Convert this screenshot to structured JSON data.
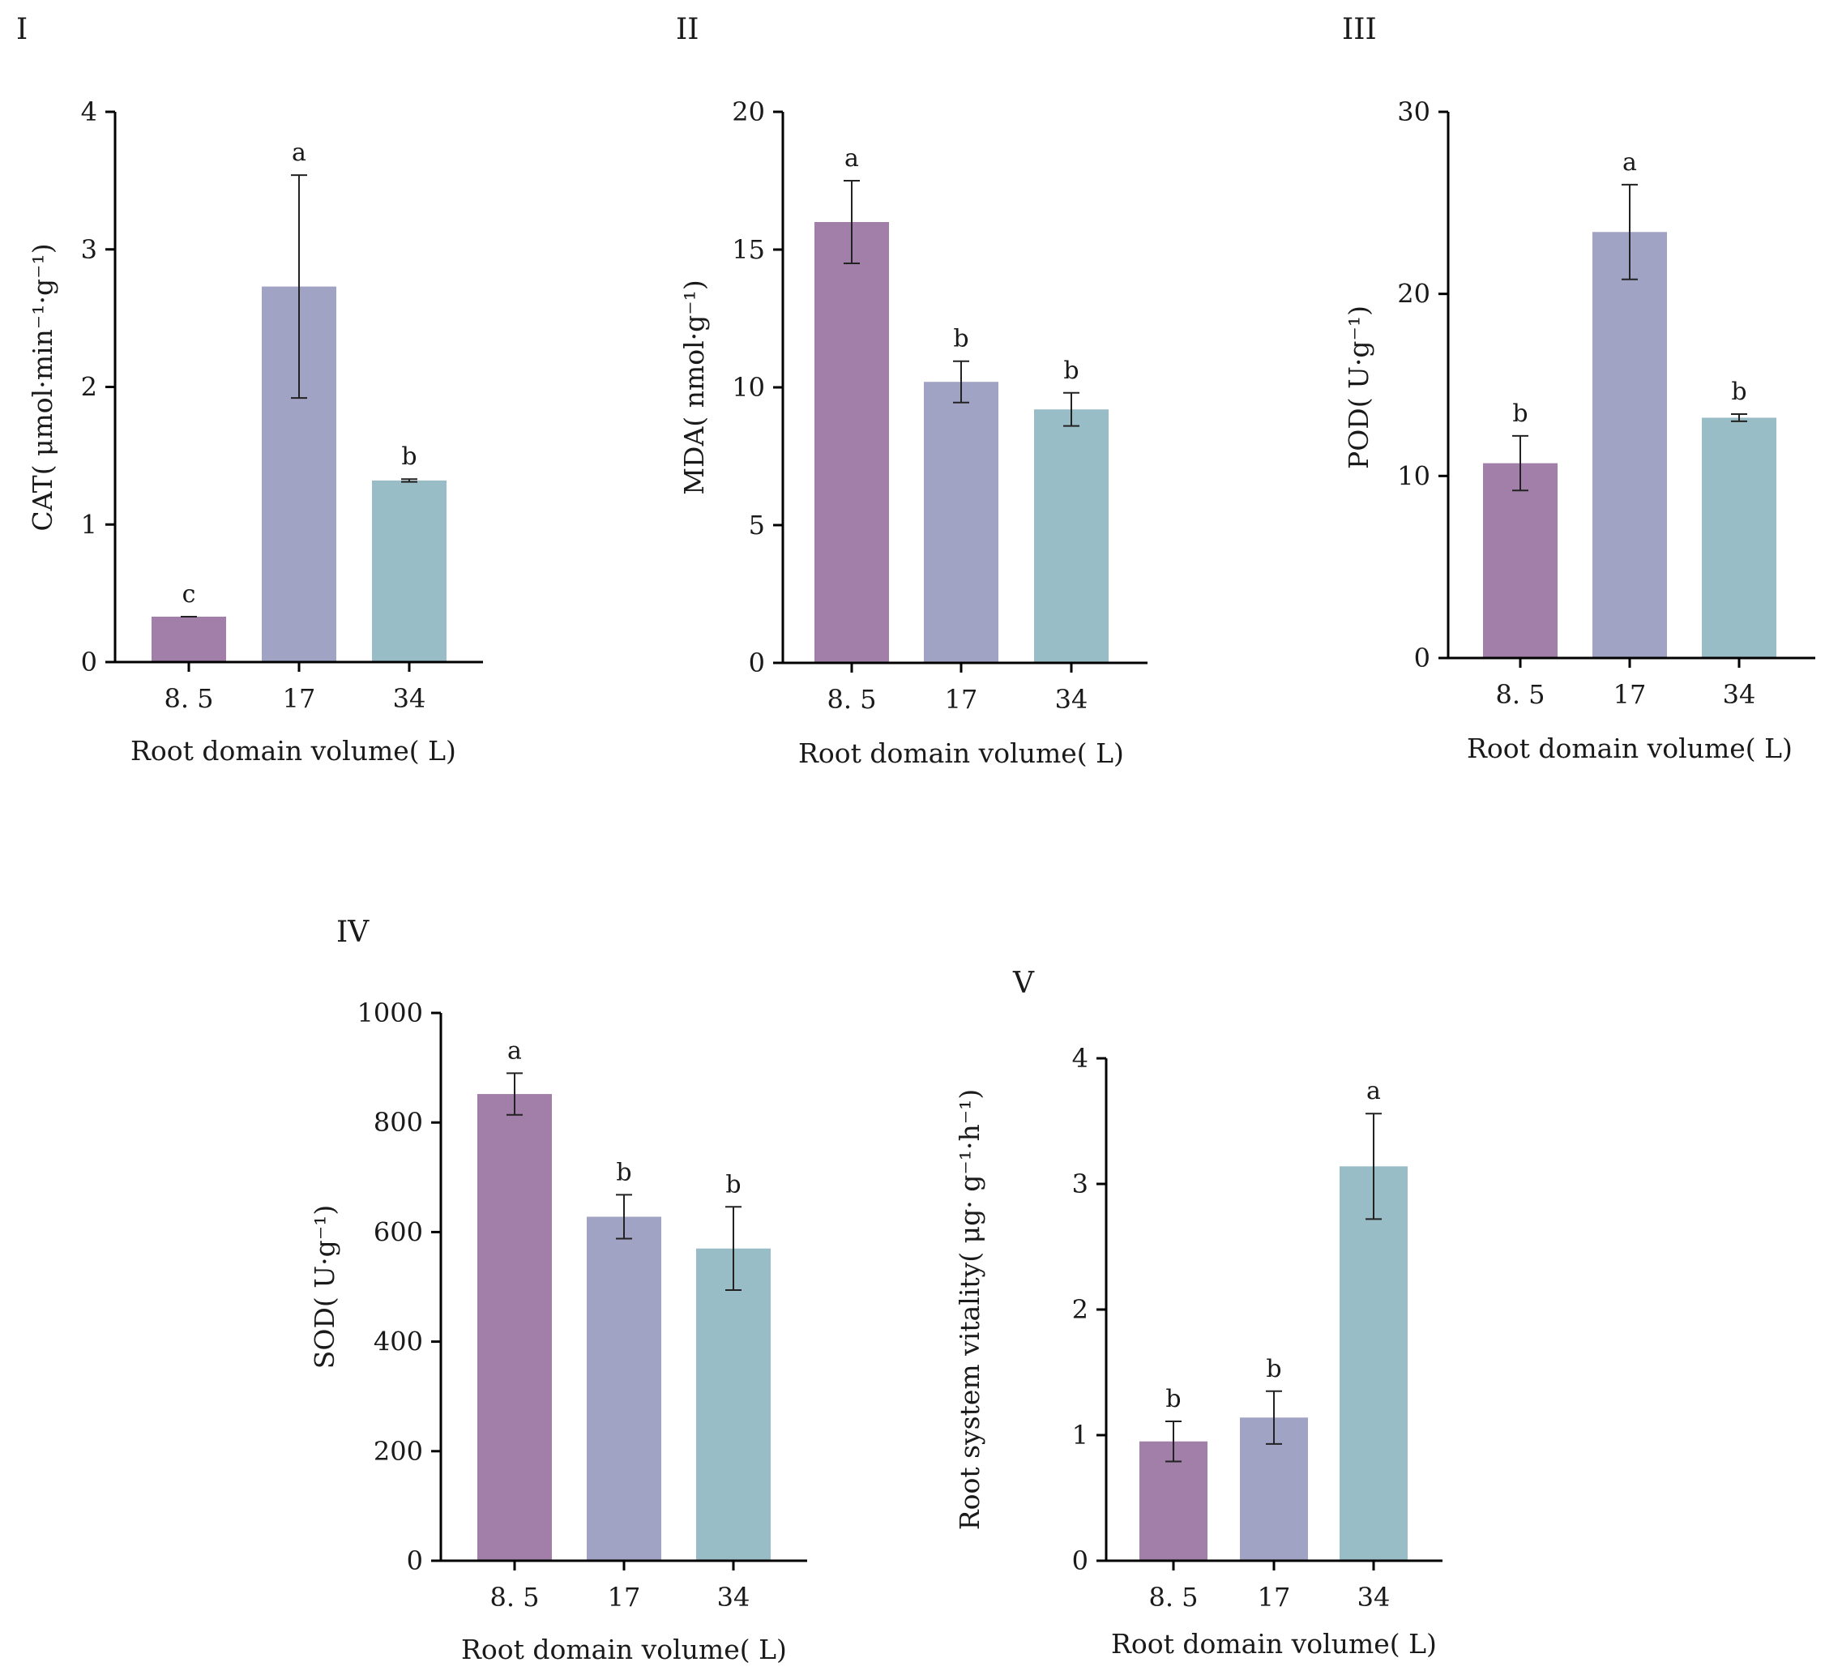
{
  "colors": {
    "bar_8_5": "#a17fa8",
    "bar_17": "#a1a3c4",
    "bar_34": "#98bdc7"
  },
  "chart_data": [
    {
      "type": "bar",
      "panel_label": "I",
      "title": "",
      "categories": [
        "8. 5",
        "17",
        "34"
      ],
      "values": [
        0.33,
        2.73,
        1.32
      ],
      "errors": [
        0,
        0.81,
        0.01
      ],
      "significance": [
        "c",
        "a",
        "b"
      ],
      "xlabel": "Root domain volume( L)",
      "ylabel": "CAT( μmol·min⁻¹·g⁻¹)",
      "ylim": [
        0,
        4
      ],
      "yticks": [
        "0",
        "1",
        "2",
        "3",
        "4"
      ]
    },
    {
      "type": "bar",
      "panel_label": "II",
      "title": "",
      "categories": [
        "8. 5",
        "17",
        "34"
      ],
      "values": [
        16.0,
        10.2,
        9.2
      ],
      "errors": [
        1.5,
        0.75,
        0.6
      ],
      "significance": [
        "a",
        "b",
        "b"
      ],
      "xlabel": "Root domain volume( L)",
      "ylabel": "MDA( nmol·g⁻¹)",
      "ylim": [
        0,
        20
      ],
      "yticks": [
        "0",
        "5",
        "10",
        "15",
        "20"
      ]
    },
    {
      "type": "bar",
      "panel_label": "III",
      "title": "",
      "categories": [
        "8. 5",
        "17",
        "34"
      ],
      "values": [
        10.7,
        23.4,
        13.2
      ],
      "errors": [
        1.5,
        2.6,
        0.2
      ],
      "significance": [
        "b",
        "a",
        "b"
      ],
      "xlabel": "Root domain volume( L)",
      "ylabel": "POD( U·g⁻¹)",
      "ylim": [
        0,
        30
      ],
      "yticks": [
        "0",
        "10",
        "20",
        "30"
      ]
    },
    {
      "type": "bar",
      "panel_label": "IV",
      "title": "",
      "categories": [
        "8. 5",
        "17",
        "34"
      ],
      "values": [
        852,
        628,
        570
      ],
      "errors": [
        38,
        40,
        76
      ],
      "significance": [
        "a",
        "b",
        "b"
      ],
      "xlabel": "Root domain volume( L)",
      "ylabel": "SOD( U·g⁻¹)",
      "ylim": [
        0,
        1000
      ],
      "yticks": [
        "0",
        "200",
        "400",
        "600",
        "800",
        "1000"
      ]
    },
    {
      "type": "bar",
      "panel_label": "V",
      "title": "",
      "categories": [
        "8. 5",
        "17",
        "34"
      ],
      "values": [
        0.95,
        1.14,
        3.14
      ],
      "errors": [
        0.16,
        0.21,
        0.42
      ],
      "significance": [
        "b",
        "b",
        "a"
      ],
      "xlabel": "Root domain volume( L)",
      "ylabel": "Root system vitality( μg· g⁻¹·h⁻¹)",
      "ylim": [
        0,
        4
      ],
      "yticks": [
        "0",
        "1",
        "2",
        "3",
        "4"
      ]
    }
  ]
}
